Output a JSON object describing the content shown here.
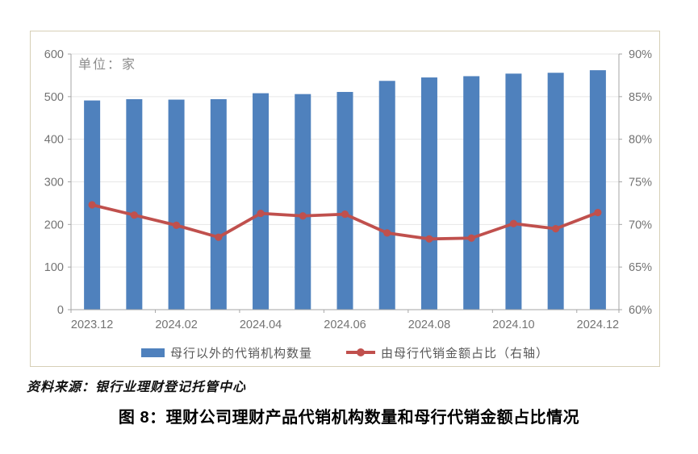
{
  "chart": {
    "unit_label": "单位：家",
    "source": "资料来源：银行业理财登记托管中心",
    "caption": "图 8：理财公司理财产品代销机构数量和母行代销金额占比情况",
    "legend": [
      {
        "type": "bar",
        "label": "母行以外的代销机构数量"
      },
      {
        "type": "line",
        "label": "由母行代销金额占比（右轴）"
      }
    ]
  },
  "chart_data": {
    "type": "bar+line",
    "title": "图 8：理财公司理财产品代销机构数量和母行代销金额占比情况",
    "unit_note": "单位：家",
    "categories": [
      "2023.12",
      "2024.01",
      "2024.02",
      "2024.03",
      "2024.04",
      "2024.05",
      "2024.06",
      "2024.07",
      "2024.08",
      "2024.09",
      "2024.10",
      "2024.11",
      "2024.12"
    ],
    "x_tick_labels": [
      "2023.12",
      "2024.02",
      "2024.04",
      "2024.06",
      "2024.08",
      "2024.10",
      "2024.12"
    ],
    "series": [
      {
        "name": "母行以外的代销机构数量",
        "type": "bar",
        "axis": "left",
        "values": [
          491,
          494,
          493,
          494,
          508,
          506,
          511,
          537,
          545,
          548,
          554,
          556,
          562
        ]
      },
      {
        "name": "由母行代销金额占比（右轴）",
        "type": "line",
        "axis": "right",
        "values": [
          72.3,
          71.1,
          69.9,
          68.5,
          71.3,
          71.0,
          71.2,
          69.0,
          68.3,
          68.4,
          70.1,
          69.5,
          71.4
        ]
      }
    ],
    "left_axis": {
      "min": 0,
      "max": 600,
      "step": 100,
      "tick_labels": [
        "0",
        "100",
        "200",
        "300",
        "400",
        "500",
        "600"
      ]
    },
    "right_axis": {
      "min": 60,
      "max": 90,
      "step": 5,
      "tick_labels": [
        "60%",
        "65%",
        "70%",
        "75%",
        "80%",
        "85%",
        "90%"
      ]
    },
    "grid": true,
    "legend_position": "bottom"
  },
  "colors": {
    "bar": "#4f81bd",
    "line": "#c0504d",
    "gridline": "#e6e6e6",
    "axis_line": "#a6a6a6",
    "tick_text": "#737373",
    "frame_border": "#d6cfb6"
  }
}
